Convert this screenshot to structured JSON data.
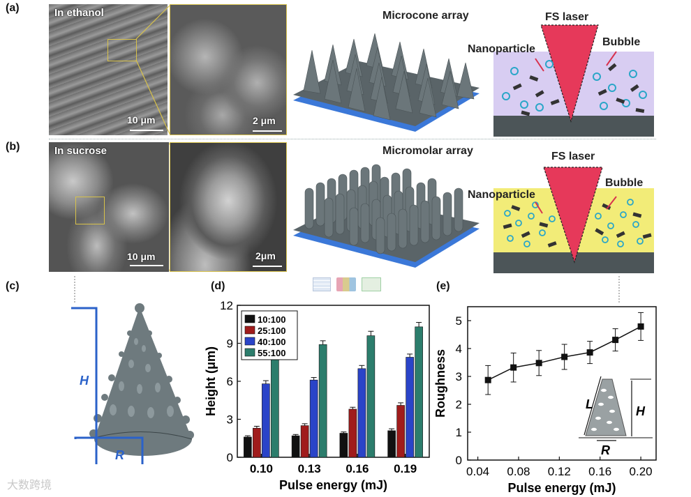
{
  "panel_labels": {
    "a": "(a)",
    "b": "(b)",
    "c": "(c)",
    "d": "(d)",
    "e": "(e)"
  },
  "row_a": {
    "sem_title": "In ethanol",
    "scale_left": "10 μm",
    "scale_right": "2 μm",
    "array_title": "Microcone array",
    "laser_label": "FS laser",
    "nanoparticle_label": "Nanoparticle",
    "bubble_label": "Bubble",
    "liquid_color": "#d8cdf2"
  },
  "row_b": {
    "sem_title": "In sucrose",
    "scale_left": "10 μm",
    "scale_right": "2μm",
    "array_title": "Micromolar array",
    "laser_label": "FS laser",
    "nanoparticle_label": "Nanoparticle",
    "bubble_label": "Bubble",
    "liquid_color": "#f2ec78"
  },
  "panel_c": {
    "h_label": "H",
    "r_label": "R"
  },
  "chart_data": [
    {
      "type": "bar",
      "panel": "(d)",
      "categories": [
        "0.10",
        "0.13",
        "0.16",
        "0.19"
      ],
      "xlabel": "Pulse energy (mJ)",
      "ylabel": "Height (μm)",
      "ylim": [
        0,
        12
      ],
      "yticks": [
        "0",
        "3",
        "6",
        "9",
        "12"
      ],
      "legend_position": "top-left",
      "series": [
        {
          "name": "10:100",
          "color": "#111111",
          "values": [
            1.6,
            1.7,
            1.9,
            2.1
          ]
        },
        {
          "name": "25:100",
          "color": "#a01c1c",
          "values": [
            2.3,
            2.5,
            3.8,
            4.1
          ]
        },
        {
          "name": "40:100",
          "color": "#2a44c8",
          "values": [
            5.8,
            6.1,
            7.0,
            7.9
          ]
        },
        {
          "name": "55:100",
          "color": "#2c7d6c",
          "values": [
            8.0,
            8.9,
            9.6,
            10.3
          ]
        }
      ],
      "errors": [
        [
          0.1,
          0.1,
          0.1,
          0.15
        ],
        [
          0.15,
          0.15,
          0.15,
          0.2
        ],
        [
          0.25,
          0.2,
          0.25,
          0.25
        ],
        [
          0.3,
          0.3,
          0.35,
          0.35
        ]
      ]
    },
    {
      "type": "line",
      "panel": "(e)",
      "x": [
        0.05,
        0.075,
        0.1,
        0.125,
        0.15,
        0.175,
        0.2
      ],
      "y": [
        2.87,
        3.32,
        3.48,
        3.7,
        3.86,
        4.31,
        4.79
      ],
      "yerr": [
        0.52,
        0.52,
        0.45,
        0.45,
        0.4,
        0.4,
        0.5
      ],
      "xlabel": "Pulse energy (mJ)",
      "ylabel": "Roughness",
      "xlim": [
        0.03,
        0.215
      ],
      "ylim": [
        0,
        5.5
      ],
      "xticks": [
        "0.04",
        "0.08",
        "0.12",
        "0.16",
        "0.20"
      ],
      "yticks": [
        "0",
        "1",
        "2",
        "3",
        "4",
        "5"
      ],
      "inset_labels": {
        "L": "L",
        "H": "H",
        "R": "R"
      }
    }
  ],
  "watermark": "大数跨境"
}
